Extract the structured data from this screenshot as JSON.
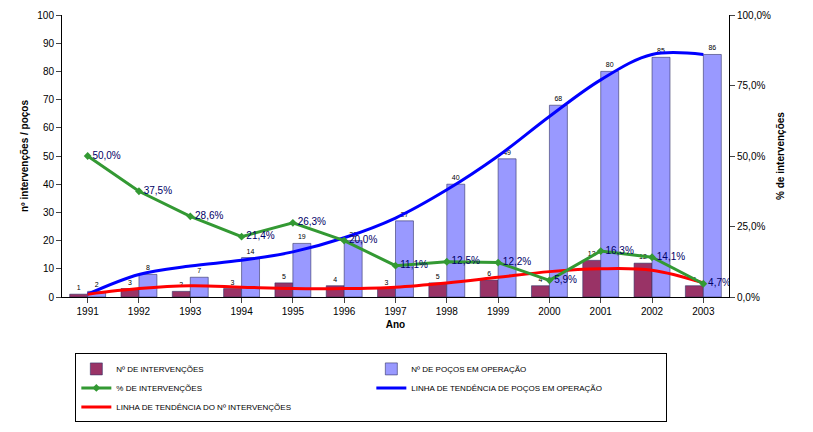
{
  "chart_data": {
    "type": "bar",
    "categories": [
      "1991",
      "1992",
      "1993",
      "1994",
      "1995",
      "1996",
      "1997",
      "1998",
      "1999",
      "2000",
      "2001",
      "2002",
      "2003"
    ],
    "x_label": "Ano",
    "y_label": "nº intervenções / poços",
    "y2_label": "% de intervenções",
    "ylim": [
      0,
      100
    ],
    "yticks": [
      0,
      10,
      20,
      30,
      40,
      50,
      60,
      70,
      80,
      90,
      100
    ],
    "y2lim": [
      0,
      100
    ],
    "y2ticks": [
      {
        "value": 0,
        "label": "0,0%"
      },
      {
        "value": 25,
        "label": "25,0%"
      },
      {
        "value": 50,
        "label": "50,0%"
      },
      {
        "value": 75,
        "label": "75,0%"
      },
      {
        "value": 100,
        "label": "100,0%"
      }
    ],
    "grid": false,
    "legend": "bottom",
    "series": [
      {
        "name": "Nº DE INTERVENÇÕES",
        "type": "bar",
        "color": "#993366",
        "data_labels": true,
        "values": [
          1,
          3,
          2,
          3,
          5,
          4,
          3,
          5,
          6,
          4,
          13,
          12,
          4
        ]
      },
      {
        "name": "Nº DE POÇOS EM OPERAÇÃO",
        "type": "bar",
        "color": "#9999ff",
        "data_labels": true,
        "values": [
          2,
          8,
          7,
          14,
          19,
          20,
          27,
          40,
          49,
          68,
          80,
          85,
          86
        ]
      },
      {
        "name": "% DE INTERVENÇÕES",
        "type": "line",
        "axis": "y2",
        "color": "#339933",
        "marker": "diamond",
        "line_style": "solid",
        "data_labels": true,
        "values": [
          50.0,
          37.5,
          28.6,
          21.4,
          26.3,
          20.0,
          11.1,
          12.5,
          12.2,
          5.9,
          16.3,
          14.1,
          4.7
        ],
        "value_labels": [
          "50,0%",
          "37,5%",
          "28,6%",
          "21,4%",
          "26,3%",
          "20,0%",
          "11,1%",
          "12,5%",
          "12,2%",
          "5,9%",
          "16,3%",
          "14,1%",
          "4,7%"
        ]
      },
      {
        "name": "LINHA DE TENDÊNCIA DE POÇOS EM OPERAÇÃO",
        "type": "line",
        "color": "#0000ff",
        "line_style": "smooth",
        "data_labels": false,
        "values": [
          1,
          8,
          11,
          13,
          16,
          21,
          28,
          38,
          50,
          64,
          77,
          86,
          86
        ]
      },
      {
        "name": "LINHA DE TENDÊNCIA DO Nº INTERVENÇÕES",
        "type": "line",
        "color": "#ff0000",
        "line_style": "smooth",
        "data_labels": false,
        "values": [
          1,
          3,
          4,
          3.5,
          3,
          3,
          3.5,
          5,
          7,
          9,
          10,
          9.5,
          5
        ]
      }
    ]
  }
}
